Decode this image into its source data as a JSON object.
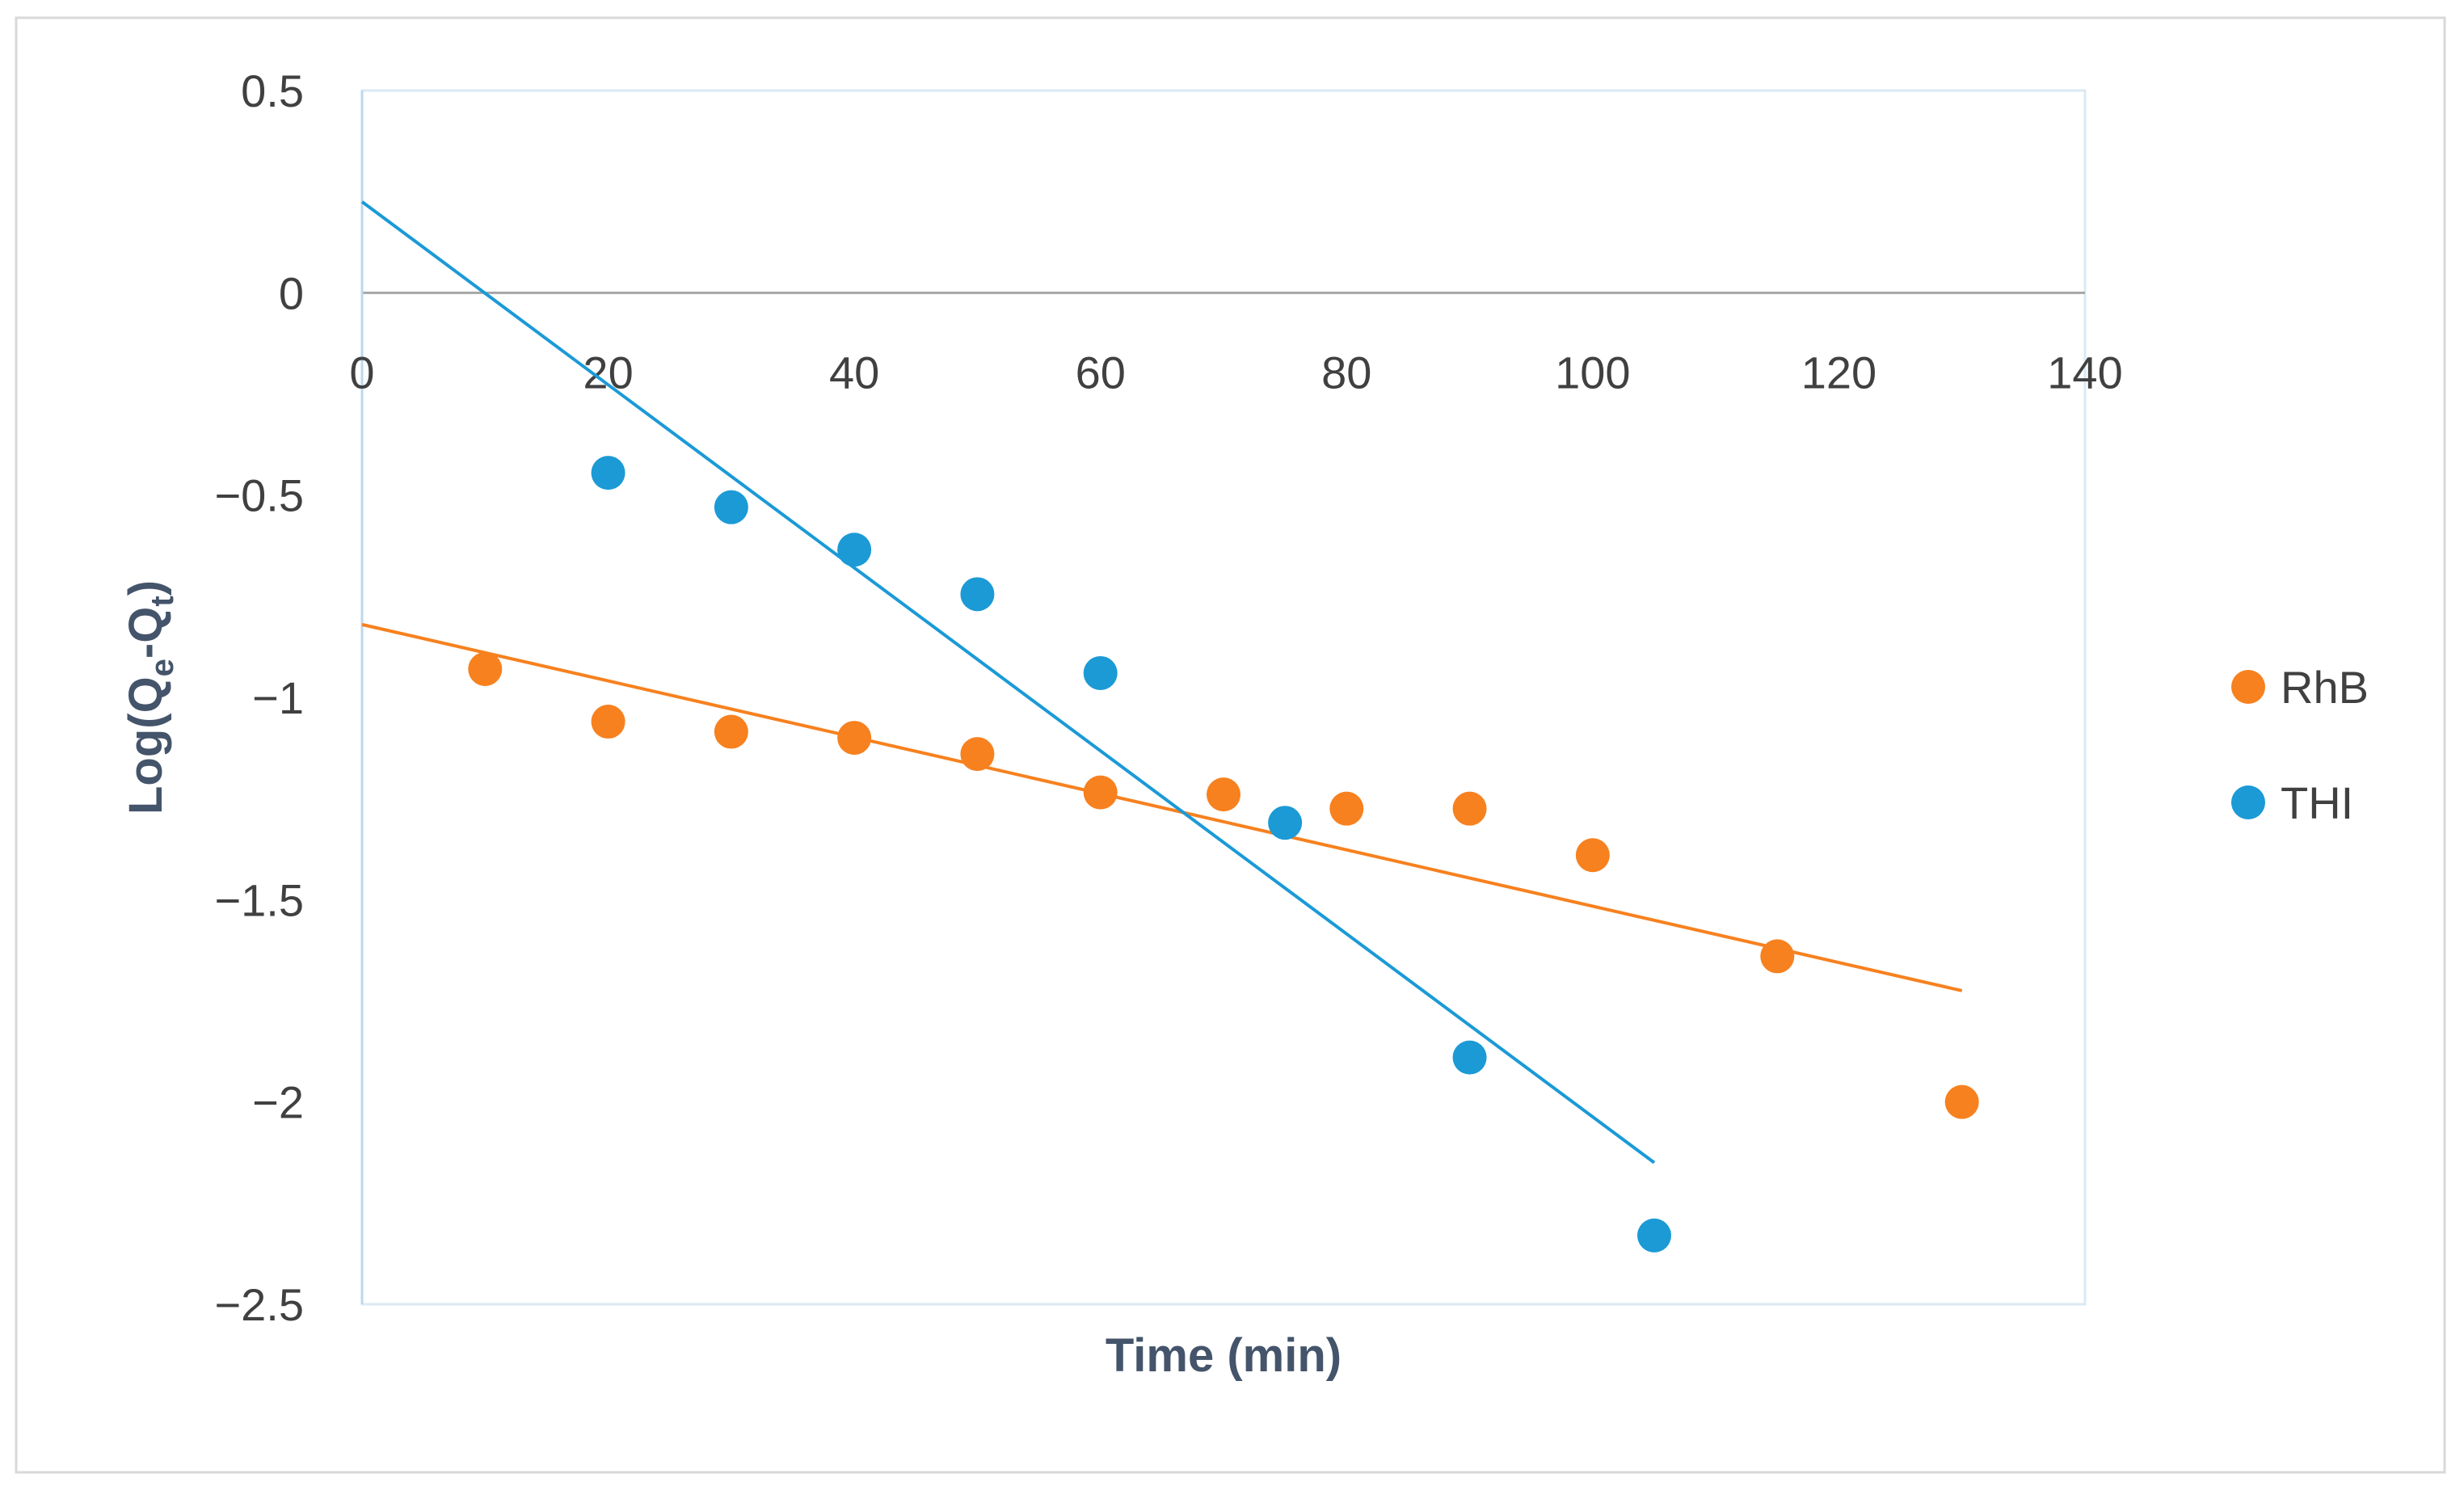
{
  "chart_data": {
    "type": "scatter",
    "title": "",
    "xlabel": "Time (min)",
    "ylabel": "Log(Qe-Qt)",
    "ylabel_parts": {
      "base": "Log(Q",
      "sub1": "e",
      "mid": "-Q",
      "sub2": "t",
      "end": ")"
    },
    "xlim": [
      0,
      140
    ],
    "ylim": [
      -2.5,
      0.5
    ],
    "x_ticks": [
      0,
      20,
      40,
      60,
      80,
      100,
      120,
      140
    ],
    "x_tick_labels": [
      "0",
      "20",
      "40",
      "60",
      "80",
      "100",
      "120",
      "140"
    ],
    "y_ticks": [
      0.5,
      0,
      -0.5,
      -1,
      -1.5,
      -2,
      -2.5
    ],
    "y_tick_labels": [
      "0.5",
      "0",
      "−0.5",
      "−1",
      "−1.5",
      "−2",
      "−2.5"
    ],
    "grid": false,
    "legend_position": "right",
    "series": [
      {
        "name": "RhB",
        "color": "#F7811F",
        "x": [
          10,
          20,
          30,
          40,
          50,
          60,
          70,
          80,
          90,
          100,
          115,
          130
        ],
        "y": [
          -0.93,
          -1.06,
          -1.085,
          -1.1,
          -1.14,
          -1.235,
          -1.24,
          -1.275,
          -1.275,
          -1.39,
          -1.64,
          -2.0
        ],
        "trendline": {
          "x": [
            0,
            130
          ],
          "y": [
            -0.82,
            -1.725
          ]
        }
      },
      {
        "name": "THI",
        "color": "#1B9AD6",
        "x": [
          20,
          30,
          40,
          50,
          60,
          75,
          90,
          105
        ],
        "y": [
          -0.445,
          -0.53,
          -0.635,
          -0.745,
          -0.94,
          -1.31,
          -1.89,
          -2.33
        ],
        "trendline": {
          "x": [
            0,
            105
          ],
          "y": [
            0.225,
            -2.15
          ]
        }
      }
    ]
  }
}
